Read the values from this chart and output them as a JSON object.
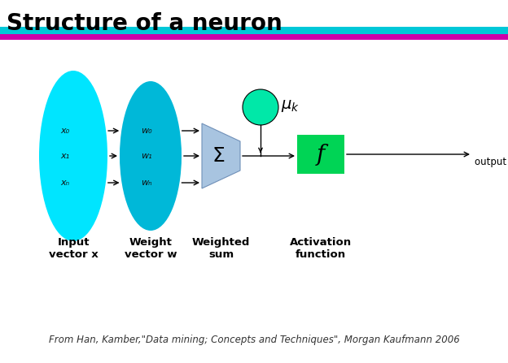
{
  "title": "Structure of a neuron",
  "title_fontsize": 20,
  "title_fontweight": "bold",
  "bg_color": "#ffffff",
  "input_ellipse_color": "#00e5ff",
  "weight_ellipse_color": "#00b8d8",
  "sum_color": "#a8c4e0",
  "sum_edge_color": "#7090b8",
  "circle_color": "#00e8a8",
  "circle_edge_color": "#000000",
  "rect_color": "#00d455",
  "teal_bar_color": "#00c8d8",
  "magenta_bar_color": "#cc00aa",
  "arrow_color": "#000000",
  "x_labels": [
    "x₀",
    "x₁",
    "xₙ"
  ],
  "w_labels": [
    "w₀",
    "w₁",
    "wₙ"
  ],
  "sigma_label": "Σ",
  "f_label": "f",
  "output_label": "output y",
  "caption_labels": [
    "Input\nvector x",
    "Weight\nvector w",
    "Weighted\nsum",
    "Activation\nfunction"
  ],
  "footnote": "From Han, Kamber,\"Data mining; Concepts and Techniques\", Morgan Kaufmann 2006",
  "footnote_fontsize": 8.5,
  "caption_fontsize": 9.5,
  "label_fontsize": 8
}
